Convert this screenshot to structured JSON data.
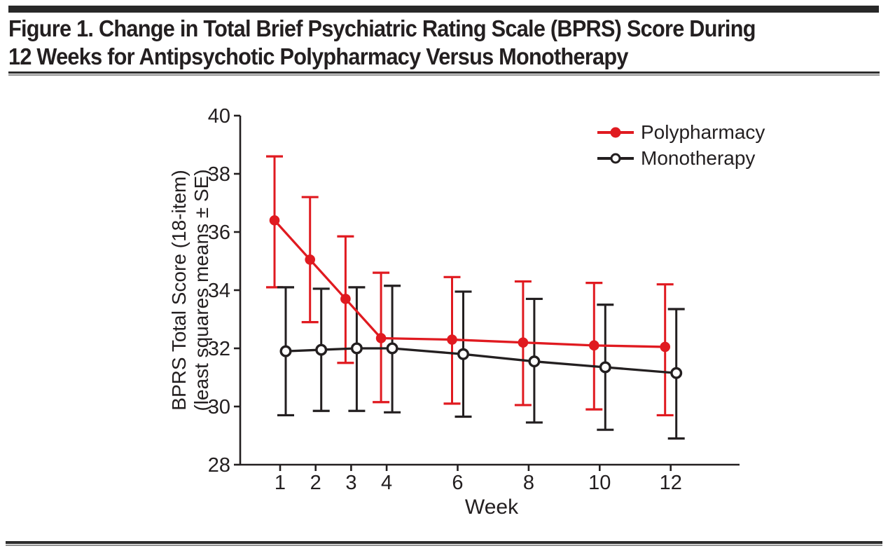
{
  "page": {
    "background": "#ffffff",
    "ink_color": "#231f20",
    "accent_red": "#e01a20"
  },
  "header": {
    "title_line1": "Figure 1. Change in Total Brief Psychiatric Rating Scale (BPRS) Score During",
    "title_line2": "12 Weeks for Antipsychotic Polypharmacy Versus Monotherapy"
  },
  "chart_data": {
    "type": "line",
    "title": "Change in Total Brief Psychiatric Rating Scale (BPRS) Score During 12 Weeks for Antipsychotic Polypharmacy Versus Monotherapy",
    "xlabel": "Week",
    "ylabel_lines": [
      "BPRS Total Score (18-item)",
      "(least squares means ± SE)"
    ],
    "x": [
      1,
      2,
      3,
      4,
      6,
      8,
      10,
      12
    ],
    "xticks": [
      1,
      2,
      3,
      4,
      6,
      8,
      10,
      12
    ],
    "ylim": [
      28,
      40
    ],
    "yticks": [
      28,
      30,
      32,
      34,
      36,
      38,
      40
    ],
    "grid": false,
    "legend_position": "top-right",
    "error_bars": "± SE",
    "series": [
      {
        "name": "Polypharmacy",
        "color": "#e01a20",
        "marker": "filled-circle",
        "values": [
          36.4,
          35.05,
          33.7,
          32.35,
          32.3,
          32.2,
          32.1,
          32.05
        ],
        "upper": [
          38.6,
          37.2,
          35.85,
          34.6,
          34.45,
          34.3,
          34.25,
          34.2
        ],
        "lower": [
          34.1,
          32.9,
          31.5,
          30.15,
          30.1,
          30.05,
          29.9,
          29.7
        ]
      },
      {
        "name": "Monotherapy",
        "color": "#231f20",
        "marker": "open-circle",
        "values": [
          31.9,
          31.95,
          32.0,
          32.0,
          31.8,
          31.55,
          31.35,
          31.15
        ],
        "upper": [
          34.1,
          34.05,
          34.1,
          34.15,
          33.95,
          33.7,
          33.5,
          33.35
        ],
        "lower": [
          29.7,
          29.85,
          29.85,
          29.8,
          29.65,
          29.45,
          29.2,
          28.9
        ]
      }
    ]
  }
}
